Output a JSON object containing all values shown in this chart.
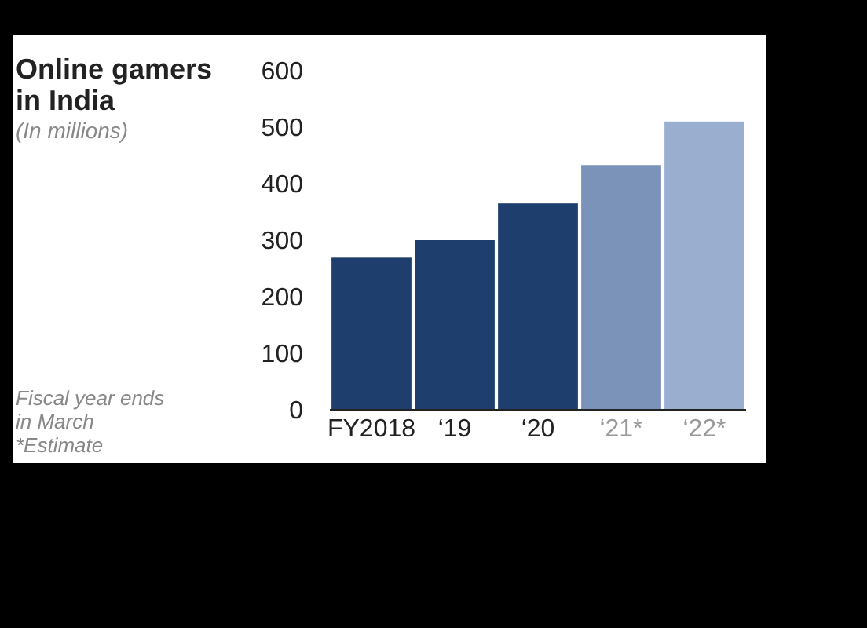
{
  "chart_data": {
    "type": "bar",
    "title": "Online gamers in India",
    "subtitle": "(In millions)",
    "categories": [
      "FY2018",
      "‘19",
      "‘20",
      "‘21*",
      "‘22*"
    ],
    "values": [
      269,
      300,
      365,
      433,
      510
    ],
    "colors": [
      "#1e3f6d",
      "#1e3f6d",
      "#1e3f6d",
      "#7b93b9",
      "#9aaed0"
    ],
    "ylim": [
      0,
      600
    ],
    "yticks": [
      0,
      100,
      200,
      300,
      400,
      500,
      600
    ],
    "grid": false,
    "annotations": [
      "Fiscal year ends in March",
      "*Estimate"
    ]
  }
}
